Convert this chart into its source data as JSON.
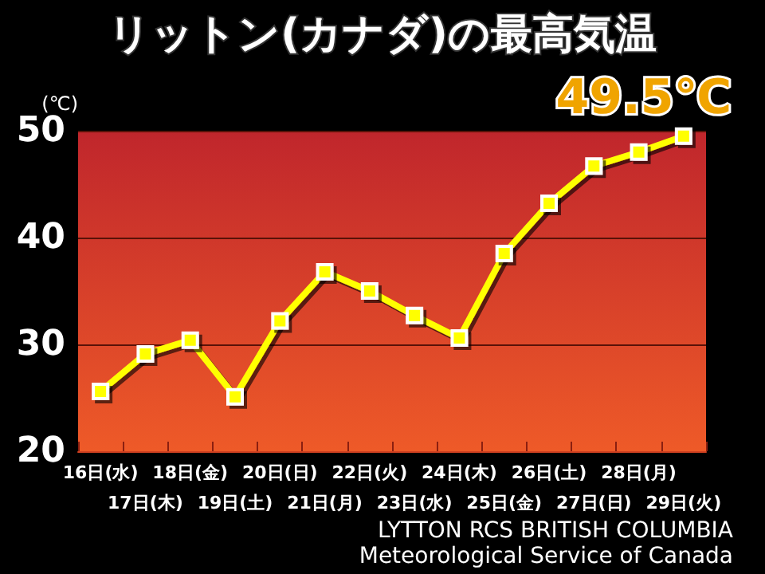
{
  "chart_data": {
    "type": "line",
    "title": "リットン(カナダ)の最高気温",
    "ylabel": "(℃)",
    "categories": [
      "16日(水)",
      "17日(木)",
      "18日(金)",
      "19日(土)",
      "20日(日)",
      "21日(月)",
      "22日(火)",
      "23日(水)",
      "24日(木)",
      "25日(金)",
      "26日(土)",
      "27日(日)",
      "28日(月)",
      "29日(火)"
    ],
    "series": [
      {
        "color": "#ffff00",
        "values": [
          25.6,
          29.1,
          30.4,
          25.1,
          32.2,
          36.8,
          35.0,
          32.7,
          30.6,
          38.5,
          43.2,
          46.7,
          48.0,
          49.5
        ]
      }
    ],
    "ylim": [
      20,
      50
    ],
    "yticks": [
      20,
      30,
      40,
      50
    ],
    "grid": "y",
    "marker": "square",
    "line_style": "solid",
    "annotations": [
      {
        "text": "49.5℃",
        "x": "29日(火)",
        "y": 49.5
      },
      "LYTTON RCS BRITISH COLUMBIA",
      "Meteorological Service of Canada"
    ]
  }
}
